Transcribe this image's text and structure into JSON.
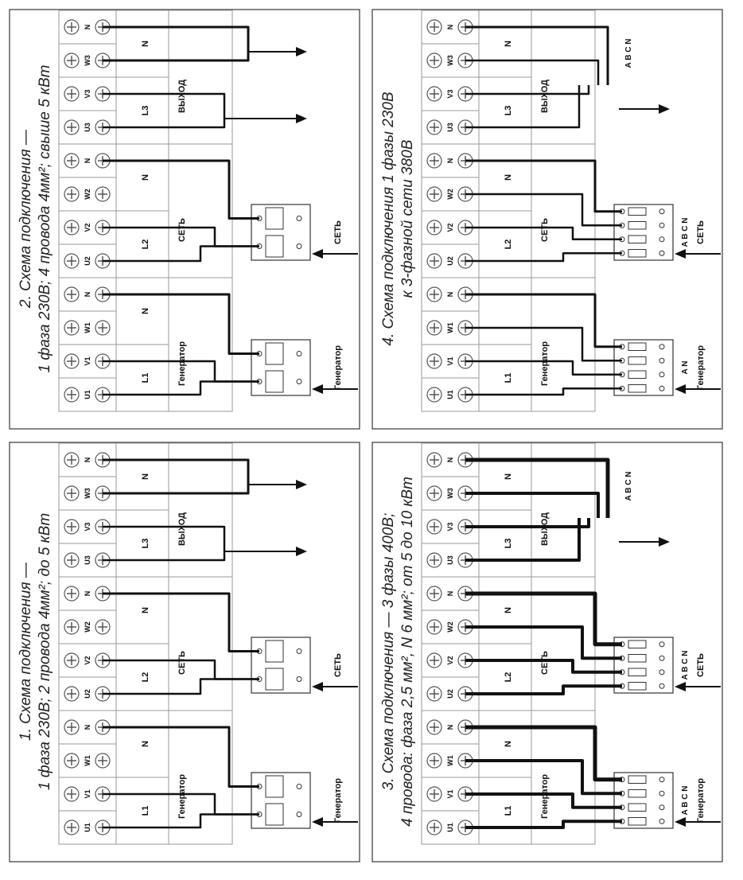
{
  "panels": [
    {
      "id": "p1",
      "title1": "1. Схема подключения —",
      "title2": "1 фаза 230В; 2 провода 4мм²; до 5 кВт",
      "group_labels": [
        "L1",
        "N",
        "L2",
        "N",
        "L3",
        "N"
      ],
      "section_labels": {
        "gen": "Генератор",
        "net": "СЕТЬ",
        "out": "ВЫХОД"
      },
      "breaker_labels": {
        "gen": "Генератор",
        "net": "СЕТЬ"
      },
      "poles": 2,
      "breaker_abc": ""
    },
    {
      "id": "p2",
      "title1": "2. Схема подключения —",
      "title2": "1 фаза 230В; 4 провода 4мм²; свыше 5 кВт",
      "group_labels": [
        "L1",
        "N",
        "L2",
        "N",
        "L3",
        "N"
      ],
      "section_labels": {
        "gen": "Генератор",
        "net": "СЕТЬ",
        "out": "ВЫХОД"
      },
      "breaker_labels": {
        "gen": "Генератор",
        "net": "СЕТЬ"
      },
      "poles": 2,
      "breaker_abc": ""
    },
    {
      "id": "p3",
      "title1": "3. Схема подключения — 3 фазы 400В;",
      "title2": "4 провода: фаза 2,5 мм², N 6 мм²; от 5 до 10 кВт",
      "group_labels": [
        "L1",
        "N",
        "L2",
        "N",
        "L3",
        "N"
      ],
      "section_labels": {
        "gen": "Генератор",
        "net": "СЕТЬ",
        "out": "ВЫХОД"
      },
      "breaker_labels": {
        "gen": "Генератор",
        "net": "СЕТЬ"
      },
      "poles": 4,
      "breaker_abc": "A B C N",
      "output_abc": [
        "A B C N",
        "A B C N"
      ]
    },
    {
      "id": "p4",
      "title1": "4. Схема подключения 1 фазы 230В",
      "title2": "к 3-фазной сети 380В",
      "group_labels": [
        "L1",
        "",
        "L2",
        "N",
        "L3",
        "N"
      ],
      "section_labels": {
        "gen": "Генератор",
        "net": "СЕТЬ",
        "out": "ВЫХОД"
      },
      "breaker_labels": {
        "gen": "Генератор",
        "net": "СЕТЬ"
      },
      "poles": 4,
      "breaker_abc": "A B C N",
      "gen_breaker_abc": "A N",
      "output_abc": [
        "A B C N",
        "A B C N"
      ]
    }
  ],
  "terminals": [
    "U1",
    "V1",
    "W1",
    "N",
    "U2",
    "V2",
    "W2",
    "N",
    "U3",
    "V3",
    "W3",
    "N"
  ],
  "colors": {
    "line": "#111111",
    "grid": "#9a9a9a",
    "frame": "#444444"
  }
}
